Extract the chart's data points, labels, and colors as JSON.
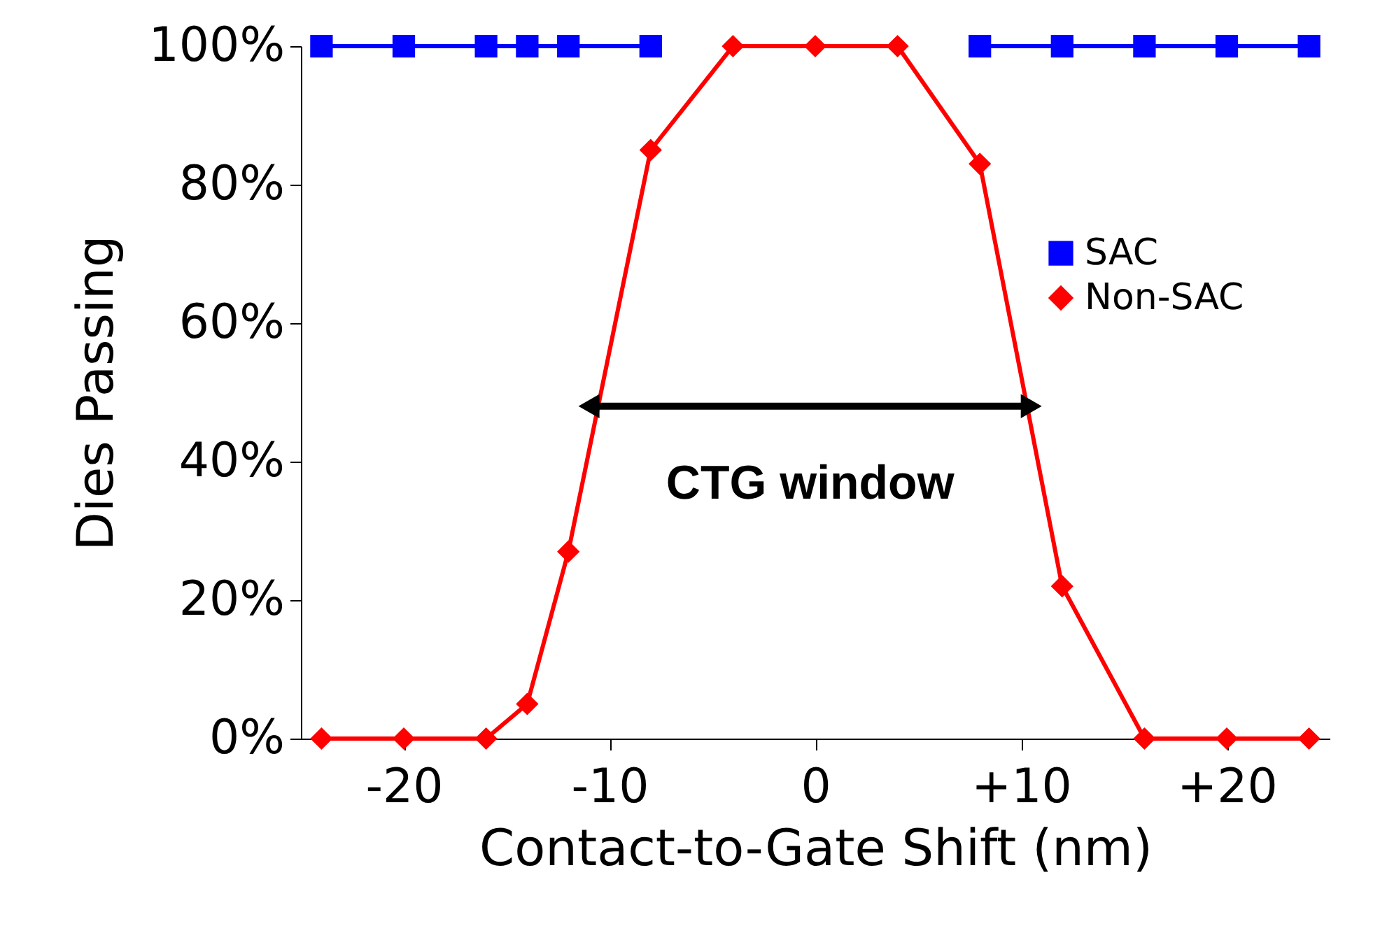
{
  "chart_data": {
    "type": "line",
    "xlabel": "Contact-to-Gate Shift (nm)",
    "ylabel": "Dies Passing",
    "x": [
      -24,
      -20,
      -16,
      -14,
      -12,
      -8,
      -4,
      0,
      4,
      8,
      12,
      16,
      20,
      24
    ],
    "series": [
      {
        "name": "SAC",
        "color": "#0000ff",
        "marker": "square",
        "values": [
          100,
          100,
          100,
          100,
          100,
          100,
          null,
          null,
          null,
          100,
          100,
          100,
          100,
          100
        ]
      },
      {
        "name": "Non-SAC",
        "color": "#ff0000",
        "marker": "diamond",
        "values": [
          0,
          0,
          0,
          5,
          27,
          85,
          100,
          100,
          100,
          83,
          22,
          0,
          0,
          0
        ]
      },
      {
        "color": "#000000",
        "marker": "triangle",
        "x": [
          -11,
          10.5
        ],
        "values": [
          48,
          48
        ]
      }
    ],
    "xlim": [
      -25,
      25
    ],
    "xticks": [
      {
        "value": -20,
        "label": "-20"
      },
      {
        "value": -10,
        "label": "-10"
      },
      {
        "value": 0,
        "label": "0"
      },
      {
        "value": 10,
        "label": "+10"
      },
      {
        "value": 20,
        "label": "+20"
      }
    ],
    "ylim": [
      0,
      100
    ],
    "yticks": [
      {
        "value": 0,
        "label": "0%"
      },
      {
        "value": 20,
        "label": "20%"
      },
      {
        "value": 40,
        "label": "40%"
      },
      {
        "value": 60,
        "label": "60%"
      },
      {
        "value": 80,
        "label": "80%"
      },
      {
        "value": 100,
        "label": "100%"
      }
    ],
    "annotations": [
      "CTG window"
    ],
    "grid": false,
    "legend": "right",
    "line_style": "solid"
  }
}
